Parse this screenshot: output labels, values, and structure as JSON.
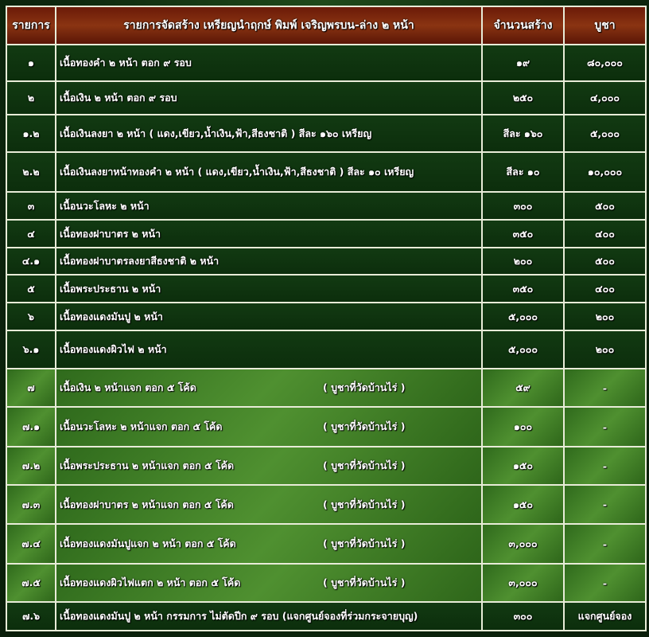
{
  "header": {
    "col_item": "รายการ",
    "col_title": "รายการจัดสร้าง เหรียญนำฤกษ์ พิมพ์ เจริญพรบน-ล่าง ๒ หน้า",
    "col_qty": "จำนวนสร้าง",
    "col_price": "บูชา"
  },
  "rows": [
    {
      "no": "๑",
      "desc": "เนื้อทองคำ ๒ หน้า ตอก ๙ รอบ",
      "note": "",
      "qty": "๑๙",
      "price": "๘๐,๐๐๐",
      "style": "dark",
      "h": 46
    },
    {
      "no": "๒",
      "desc": "เนื้อเงิน ๒ หน้า ตอก ๙ รอบ",
      "note": "",
      "qty": "๒๕๐",
      "price": "๔,๐๐๐",
      "style": "dark",
      "h": 42
    },
    {
      "no": "๑.๒",
      "desc": "เนื้อเงินลงยา ๒ หน้า ( แดง,เขียว,น้ำเงิน,ฟ้า,สีธงชาติ ) สีละ ๑๖๐ เหรียญ",
      "note": "",
      "qty": "สีละ ๑๖๐",
      "price": "๕,๐๐๐",
      "style": "dark",
      "h": 47
    },
    {
      "no": "๒.๒",
      "desc": "เนื้อเงินลงยาหน้าทองคำ ๒ หน้า ( แดง,เขียว,น้ำเงิน,ฟ้า,สีธงชาติ ) สีละ ๑๐ เหรียญ",
      "note": "",
      "qty": "สีละ ๑๐",
      "price": "๑๐,๐๐๐",
      "style": "dark",
      "h": 50
    },
    {
      "no": "๓",
      "desc": "เนื้อนวะโลหะ ๒ หน้า",
      "note": "",
      "qty": "๓๐๐",
      "price": "๕๐๐",
      "style": "dark",
      "h": 35
    },
    {
      "no": "๔",
      "desc": "เนื้อทองฝาบาตร ๒ หน้า",
      "note": "",
      "qty": "๓๕๐",
      "price": "๔๐๐",
      "style": "dark",
      "h": 35
    },
    {
      "no": "๔.๑",
      "desc": "เนื้อทองฝาบาตรลงยาสีธงชาติ ๒ หน้า",
      "note": "",
      "qty": "๒๐๐",
      "price": "๕๐๐",
      "style": "dark",
      "h": 34
    },
    {
      "no": "๕",
      "desc": "เนื้อพระประธาน ๒ หน้า",
      "note": "",
      "qty": "๓๕๐",
      "price": "๔๐๐",
      "style": "dark",
      "h": 35
    },
    {
      "no": "๖",
      "desc": "เนื้อทองแดงมันปู ๒ หน้า",
      "note": "",
      "qty": "๕,๐๐๐",
      "price": "๒๐๐",
      "style": "dark",
      "h": 35
    },
    {
      "no": "๖.๑",
      "desc": "เนื้อทองแดงผิวไฟ ๒ หน้า",
      "note": "",
      "qty": "๕,๐๐๐",
      "price": "๒๐๐",
      "style": "dark",
      "h": 48
    },
    {
      "no": "๗",
      "desc": "เนื้อเงิน ๒ หน้าแจก ตอก ๕ โค้ด",
      "note": "( บูชาที่วัดบ้านไร่ )",
      "qty": "๕๙",
      "price": "-",
      "style": "light",
      "h": 48
    },
    {
      "no": "๗.๑",
      "desc": "เนื้อนวะโลหะ ๒ หน้าแจก ตอก ๕ โค้ด",
      "note": "( บูชาที่วัดบ้านไร่ )",
      "qty": "๑๐๐",
      "price": "-",
      "style": "light",
      "h": 50
    },
    {
      "no": "๗.๒",
      "desc": "เนื้อพระประธาน ๒ หน้าแจก ตอก ๕ โค้ด",
      "note": "( บูชาที่วัดบ้านไร่ )",
      "qty": "๑๕๐",
      "price": "-",
      "style": "light",
      "h": 48
    },
    {
      "no": "๗.๓",
      "desc": "เนื้อทองฝาบาตร ๒ หน้าแจก ตอก ๕ โค้ด",
      "note": "( บูชาที่วัดบ้านไร่ )",
      "qty": "๑๕๐",
      "price": "-",
      "style": "light",
      "h": 49
    },
    {
      "no": "๗.๔",
      "desc": "เนื้อทองแดงมันปูแจก ๒ หน้า ตอก ๕ โค้ด",
      "note": "( บูชาที่วัดบ้านไร่ )",
      "qty": "๓,๐๐๐",
      "price": "-",
      "style": "light",
      "h": 50
    },
    {
      "no": "๗.๕",
      "desc": "เนื้อทองแดงผิวไฟแตก ๒ หน้า ตอก ๕ โค้ด",
      "note": "( บูชาที่วัดบ้านไร่ )",
      "qty": "๓,๐๐๐",
      "price": "-",
      "style": "light",
      "h": 48
    },
    {
      "no": "๗.๖",
      "desc": "เนื้อทองแดงมันปู ๒ หน้า กรรมการ ไม่ตัดปีก ๙ รอบ (แจกศูนย์จองที่ร่วมกระจายบุญ)",
      "note": "",
      "qty": "๓๐๐",
      "price": "แจกศูนย์จอง",
      "style": "dark",
      "h": 36
    }
  ]
}
